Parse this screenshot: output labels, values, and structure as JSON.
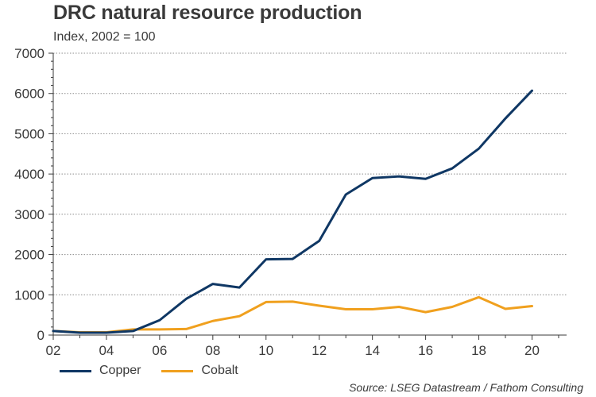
{
  "chart_data": {
    "type": "line",
    "title": "DRC natural resource production",
    "subtitle": "Index, 2002 = 100",
    "source": "Source: LSEG Datastream / Fathom Consulting",
    "x": [
      2002,
      2003,
      2004,
      2005,
      2006,
      2007,
      2008,
      2009,
      2010,
      2011,
      2012,
      2013,
      2014,
      2015,
      2016,
      2017,
      2018,
      2019,
      2020
    ],
    "xlim": [
      2002,
      2021.3
    ],
    "x_ticks": [
      2002,
      2004,
      2006,
      2008,
      2010,
      2012,
      2014,
      2016,
      2018,
      2020
    ],
    "x_tick_labels": [
      "02",
      "04",
      "06",
      "08",
      "10",
      "12",
      "14",
      "16",
      "18",
      "20"
    ],
    "ylim": [
      0,
      7000
    ],
    "y_ticks": [
      0,
      1000,
      2000,
      3000,
      4000,
      5000,
      6000,
      7000
    ],
    "y_tick_labels": [
      "0",
      "1000",
      "2000",
      "3000",
      "4000",
      "5000",
      "6000",
      "7000"
    ],
    "grid": "horizontal dotted",
    "legend_position": "bottom-left",
    "series": [
      {
        "name": "Copper",
        "color": "#0f3764",
        "values": [
          100,
          60,
          60,
          100,
          370,
          900,
          1270,
          1180,
          1880,
          1890,
          2340,
          3490,
          3900,
          3940,
          3880,
          4140,
          4630,
          5380,
          6070
        ]
      },
      {
        "name": "Cobalt",
        "color": "#f0a01e",
        "values": [
          100,
          70,
          70,
          140,
          140,
          150,
          350,
          470,
          820,
          830,
          730,
          640,
          640,
          700,
          570,
          700,
          940,
          650,
          720
        ]
      }
    ]
  },
  "colors": {
    "axis": "#3a3a3a",
    "grid": "#8c8c8c"
  }
}
